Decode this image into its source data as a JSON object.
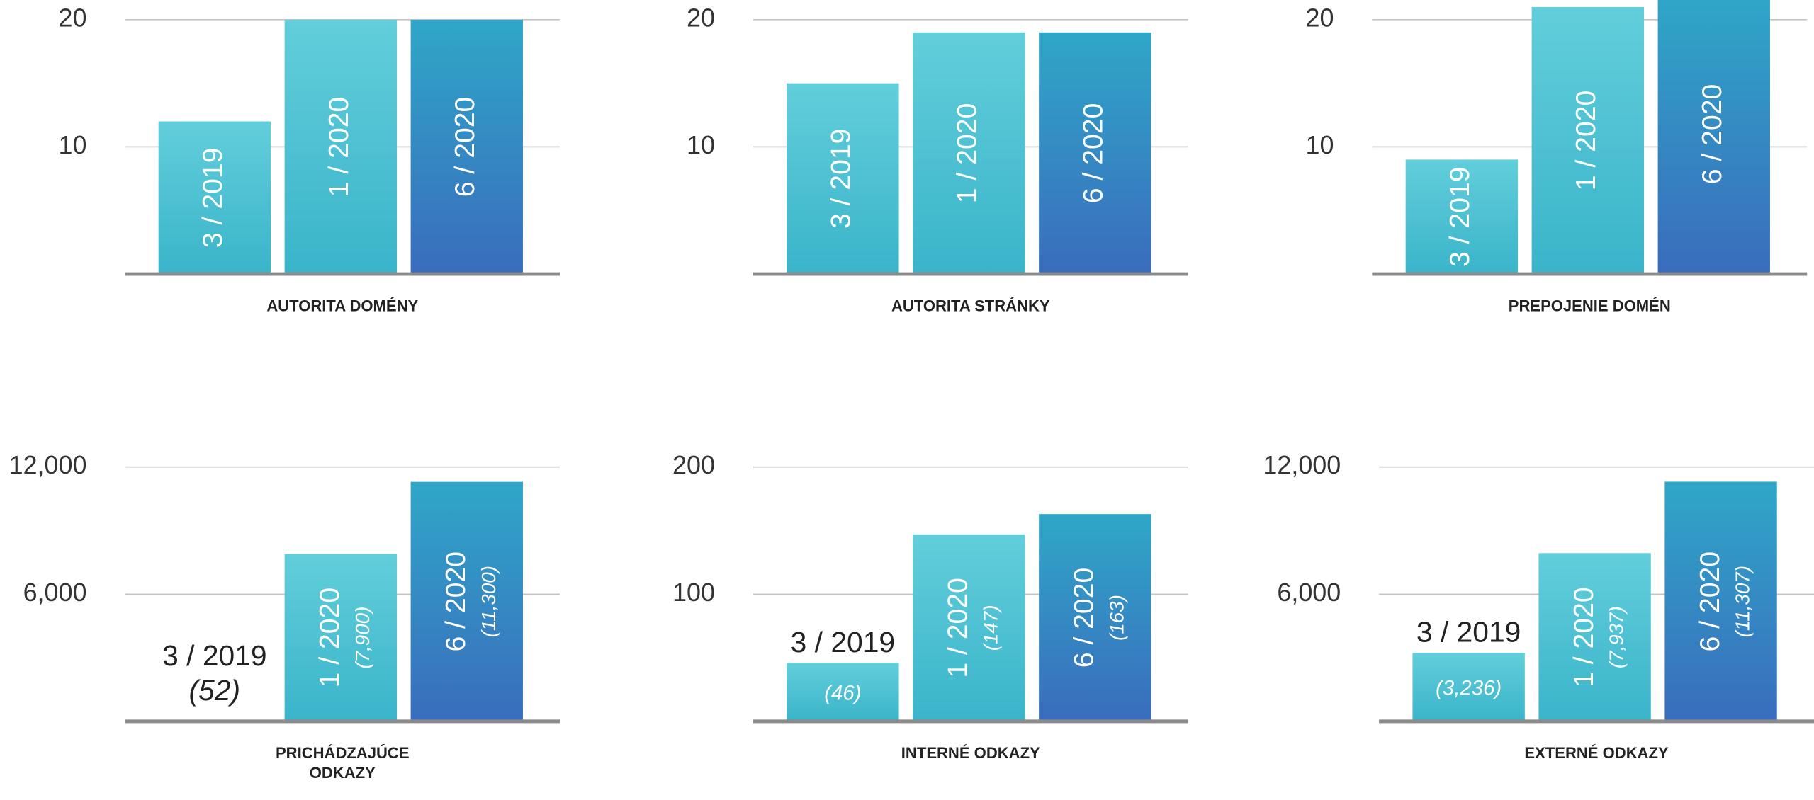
{
  "chart_data": [
    {
      "type": "bar",
      "title": "AUTORITA DOMÉNY",
      "categories": [
        "3 / 2019",
        "1 / 2020",
        "6 / 2020"
      ],
      "values": [
        12,
        20,
        20
      ],
      "ylim": [
        0,
        22
      ],
      "yticks": [
        10,
        20
      ],
      "grid": true,
      "colors": [
        [
          "#62cedb",
          "#3ab4ca"
        ],
        [
          "#62cedb",
          "#3ab4ca"
        ],
        [
          "#2fa7c8",
          "#3a6cbd"
        ]
      ]
    },
    {
      "type": "bar",
      "title": "AUTORITA STRÁNKY",
      "categories": [
        "3 / 2019",
        "1 / 2020",
        "6 / 2020"
      ],
      "values": [
        15,
        19,
        19
      ],
      "ylim": [
        0,
        22
      ],
      "yticks": [
        10,
        20
      ],
      "grid": true,
      "colors": [
        [
          "#62cedb",
          "#3ab4ca"
        ],
        [
          "#62cedb",
          "#3ab4ca"
        ],
        [
          "#2fa7c8",
          "#3a6cbd"
        ]
      ]
    },
    {
      "type": "bar",
      "title": "PREPOJENIE DOMÉN",
      "categories": [
        "3 / 2019",
        "1 / 2020",
        "6 / 2020"
      ],
      "values": [
        9,
        21,
        22
      ],
      "ylim": [
        0,
        22
      ],
      "yticks": [
        10,
        20
      ],
      "grid": true,
      "colors": [
        [
          "#62cedb",
          "#3ab4ca"
        ],
        [
          "#62cedb",
          "#3ab4ca"
        ],
        [
          "#2fa7c8",
          "#3a6cbd"
        ]
      ]
    },
    {
      "type": "bar",
      "title": "PRICHÁDZAJÚCE ODKAZY",
      "categories": [
        "3 / 2019",
        "1 / 2020",
        "6 / 2020"
      ],
      "values": [
        52,
        7900,
        11300
      ],
      "value_labels": [
        "(52)",
        "(7,900)",
        "(11,300)"
      ],
      "ylim": [
        0,
        12000
      ],
      "yticks": [
        {
          "value": 6000,
          "label": "6,000"
        },
        {
          "value": 12000,
          "label": "12,000"
        }
      ],
      "grid": true,
      "colors": [
        [
          "#62cedb",
          "#3ab4ca"
        ],
        [
          "#62cedb",
          "#3ab4ca"
        ],
        [
          "#2fa7c8",
          "#3a6cbd"
        ]
      ]
    },
    {
      "type": "bar",
      "title": "INTERNÉ ODKAZY",
      "categories": [
        "3 / 2019",
        "1 / 2020",
        "6 / 2020"
      ],
      "values": [
        46,
        147,
        163
      ],
      "value_labels": [
        "(46)",
        "(147)",
        "(163)"
      ],
      "ylim": [
        0,
        200
      ],
      "yticks": [
        100,
        200
      ],
      "grid": true,
      "colors": [
        [
          "#62cedb",
          "#3ab4ca"
        ],
        [
          "#62cedb",
          "#3ab4ca"
        ],
        [
          "#2fa7c8",
          "#3a6cbd"
        ]
      ]
    },
    {
      "type": "bar",
      "title": "EXTERNÉ ODKAZY",
      "categories": [
        "3 / 2019",
        "1 / 2020",
        "6 / 2020"
      ],
      "values": [
        3236,
        7937,
        11307
      ],
      "value_labels": [
        "(3,236)",
        "(7,937)",
        "(11,307)"
      ],
      "ylim": [
        0,
        12000
      ],
      "yticks": [
        {
          "value": 6000,
          "label": "6,000"
        },
        {
          "value": 12000,
          "label": "12,000"
        }
      ],
      "grid": true,
      "colors": [
        [
          "#62cedb",
          "#3ab4ca"
        ],
        [
          "#62cedb",
          "#3ab4ca"
        ],
        [
          "#2fa7c8",
          "#3a6cbd"
        ]
      ]
    }
  ]
}
